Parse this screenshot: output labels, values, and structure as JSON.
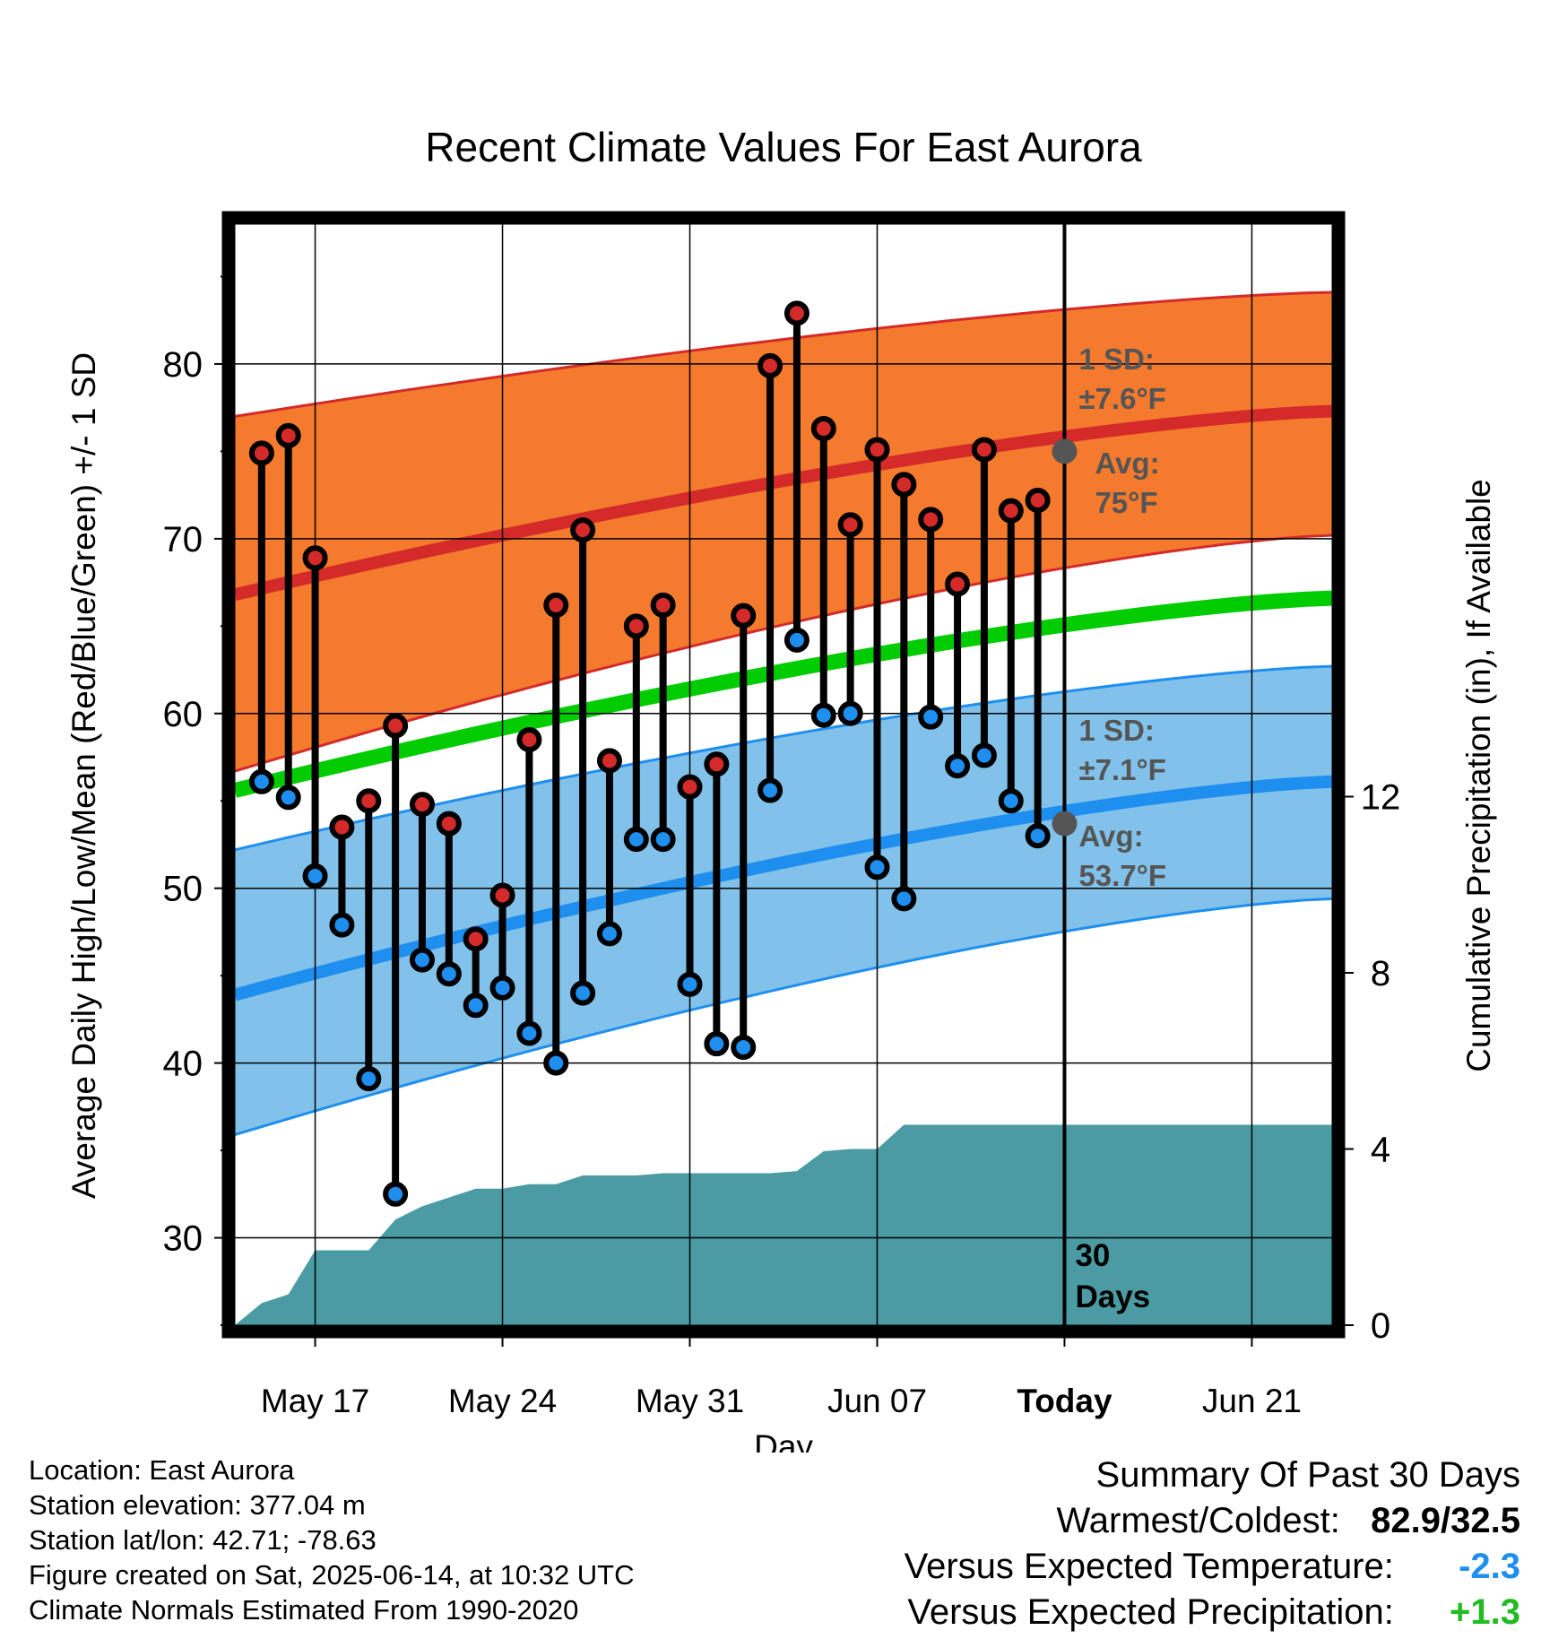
{
  "chart_data": {
    "type": "line",
    "title": "Recent Climate Values For East Aurora",
    "xlabel": "Day",
    "ylabel": "Average Daily High/Low/Mean (Red/Blue/Green) +/- 1 SD",
    "y2label": "Cumulative Precipitation (in), If Available",
    "x_ticks": [
      "May 17",
      "May 24",
      "May 31",
      "Jun 07",
      "Today",
      "Jun 21"
    ],
    "y_ticks": [
      30,
      40,
      50,
      60,
      70,
      80
    ],
    "y2_ticks": [
      0,
      4,
      8,
      12
    ],
    "ylim": [
      25,
      88
    ],
    "y2lim": [
      0,
      25
    ],
    "xlim": [
      "2025-05-14",
      "2025-06-24"
    ],
    "today": "2025-06-14",
    "grid": true,
    "dates": [
      "2025-05-15",
      "2025-05-16",
      "2025-05-17",
      "2025-05-18",
      "2025-05-19",
      "2025-05-20",
      "2025-05-21",
      "2025-05-22",
      "2025-05-23",
      "2025-05-24",
      "2025-05-25",
      "2025-05-26",
      "2025-05-27",
      "2025-05-28",
      "2025-05-29",
      "2025-05-30",
      "2025-05-31",
      "2025-06-01",
      "2025-06-02",
      "2025-06-03",
      "2025-06-04",
      "2025-06-05",
      "2025-06-06",
      "2025-06-07",
      "2025-06-08",
      "2025-06-09",
      "2025-06-10",
      "2025-06-11",
      "2025-06-12",
      "2025-06-13"
    ],
    "highs": [
      74.9,
      75.9,
      68.9,
      53.5,
      55.0,
      59.3,
      54.8,
      53.7,
      47.1,
      49.6,
      58.5,
      66.2,
      70.5,
      57.3,
      65.0,
      66.2,
      55.8,
      57.1,
      65.6,
      79.9,
      82.9,
      76.3,
      70.8,
      75.1,
      73.1,
      71.1,
      67.4,
      75.1,
      71.6,
      72.2
    ],
    "lows": [
      56.1,
      55.2,
      50.7,
      47.9,
      39.1,
      32.5,
      45.9,
      45.1,
      43.3,
      44.3,
      41.7,
      40.0,
      44.0,
      47.4,
      52.8,
      52.8,
      44.5,
      41.1,
      40.9,
      55.6,
      64.2,
      59.9,
      60.0,
      51.2,
      49.4,
      59.8,
      57.0,
      57.6,
      55.0,
      53.0
    ],
    "normals": {
      "high_avg": [
        66.8,
        77.3
      ],
      "high_upper": [
        77.0,
        84.1
      ],
      "high_lower": [
        56.7,
        70.2
      ],
      "mean": [
        55.6,
        66.6
      ],
      "low_avg": [
        43.9,
        56.1
      ],
      "low_upper": [
        52.2,
        62.7
      ],
      "low_lower": [
        35.9,
        49.4
      ]
    },
    "precip_dates": [
      "2025-05-14",
      "2025-05-15",
      "2025-05-16",
      "2025-05-17",
      "2025-05-18",
      "2025-05-19",
      "2025-05-20",
      "2025-05-21",
      "2025-05-22",
      "2025-05-23",
      "2025-05-24",
      "2025-05-25",
      "2025-05-26",
      "2025-05-27",
      "2025-05-28",
      "2025-05-29",
      "2025-05-30",
      "2025-05-31",
      "2025-06-01",
      "2025-06-02",
      "2025-06-03",
      "2025-06-04",
      "2025-06-05",
      "2025-06-06",
      "2025-06-07",
      "2025-06-08",
      "2025-06-09",
      "2025-06-10",
      "2025-06-14",
      "2025-06-24"
    ],
    "cumulative_precip": [
      0.0,
      0.5,
      0.7,
      1.7,
      1.7,
      1.7,
      2.4,
      2.7,
      2.9,
      3.1,
      3.1,
      3.2,
      3.2,
      3.4,
      3.4,
      3.4,
      3.45,
      3.45,
      3.45,
      3.45,
      3.45,
      3.5,
      3.95,
      4.0,
      4.0,
      4.55,
      4.55,
      4.55,
      4.55,
      4.55
    ],
    "annotations": {
      "high_sd_label": "1 SD:",
      "high_sd_value": "±7.6°F",
      "high_avg_label": "Avg:",
      "high_avg_value": "75°F",
      "high_avg_today": 75.0,
      "low_sd_label": "1 SD:",
      "low_sd_value": "±7.1°F",
      "low_avg_label": "Avg:",
      "low_avg_value": "53.7°F",
      "low_avg_today": 53.7,
      "days_label_1": "30",
      "days_label_2": "Days"
    },
    "colors": {
      "high_band": "#f47a2e",
      "high_line": "#d42a2a",
      "mean_line": "#00cc00",
      "low_band": "#82c2ea",
      "low_line": "#1e8fef",
      "precip": "#4a9ba4",
      "high_marker": "#d42a2a",
      "low_marker": "#1e8fef",
      "annotation": "#555555"
    }
  },
  "info": {
    "location": "Location: East Aurora",
    "elevation": "Station elevation: 377.04 m",
    "latlon": "Station lat/lon: 42.71; -78.63",
    "created": "Figure created on Sat, 2025-06-14, at 10:32 UTC",
    "normals": "Climate Normals Estimated From 1990-2020"
  },
  "summary": {
    "title": "Summary Of Past 30 Days",
    "warm_cold_label": "Warmest/Coldest:",
    "warm_cold_value": "82.9/32.5",
    "temp_label": "Versus Expected Temperature:",
    "temp_value": "-2.3",
    "temp_color": "#1e8fef",
    "precip_label": "Versus Expected Precipitation:",
    "precip_value": "+1.3",
    "precip_color": "#22bb22"
  }
}
